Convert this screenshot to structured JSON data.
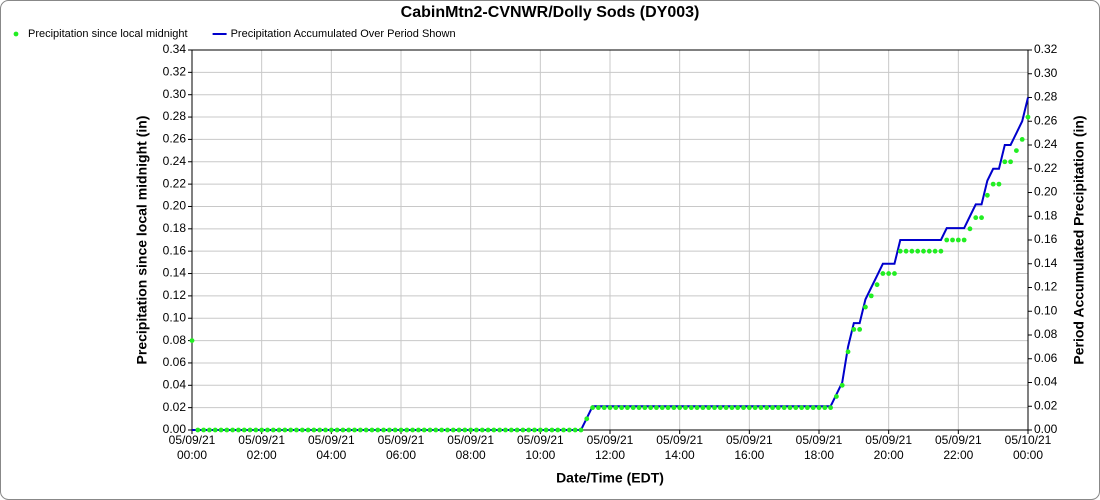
{
  "chart_data": {
    "type": "line",
    "title": "CabinMtn2-CVNWR/Dolly Sods (DY003)",
    "x_label": "Date/Time (EDT)",
    "y_label": "Precipitation since local midnight (in)",
    "y2_label": "Period Accumulated Precipitation (in)",
    "grid": true,
    "legend": "top-left",
    "xlim": [
      0,
      1440
    ],
    "xticks": [
      {
        "value": 0,
        "label": "05/09/21\n00:00"
      },
      {
        "value": 120,
        "label": "05/09/21\n02:00"
      },
      {
        "value": 240,
        "label": "05/09/21\n04:00"
      },
      {
        "value": 360,
        "label": "05/09/21\n06:00"
      },
      {
        "value": 480,
        "label": "05/09/21\n08:00"
      },
      {
        "value": 600,
        "label": "05/09/21\n10:00"
      },
      {
        "value": 720,
        "label": "05/09/21\n12:00"
      },
      {
        "value": 840,
        "label": "05/09/21\n14:00"
      },
      {
        "value": 960,
        "label": "05/09/21\n16:00"
      },
      {
        "value": 1080,
        "label": "05/09/21\n18:00"
      },
      {
        "value": 1200,
        "label": "05/09/21\n20:00"
      },
      {
        "value": 1320,
        "label": "05/09/21\n22:00"
      },
      {
        "value": 1440,
        "label": "05/10/21\n00:00"
      }
    ],
    "ylim": [
      0,
      0.34
    ],
    "yticks": [
      {
        "value": 0,
        "label": "0.00"
      },
      {
        "value": 0.02,
        "label": "0.02"
      },
      {
        "value": 0.04,
        "label": "0.04"
      },
      {
        "value": 0.06,
        "label": "0.06"
      },
      {
        "value": 0.08,
        "label": "0.08"
      },
      {
        "value": 0.1,
        "label": "0.10"
      },
      {
        "value": 0.12,
        "label": "0.12"
      },
      {
        "value": 0.14,
        "label": "0.14"
      },
      {
        "value": 0.16,
        "label": "0.16"
      },
      {
        "value": 0.18,
        "label": "0.18"
      },
      {
        "value": 0.2,
        "label": "0.20"
      },
      {
        "value": 0.22,
        "label": "0.22"
      },
      {
        "value": 0.24,
        "label": "0.24"
      },
      {
        "value": 0.26,
        "label": "0.26"
      },
      {
        "value": 0.28,
        "label": "0.28"
      },
      {
        "value": 0.3,
        "label": "0.30"
      },
      {
        "value": 0.32,
        "label": "0.32"
      },
      {
        "value": 0.34,
        "label": "0.34"
      }
    ],
    "y2lim": [
      0,
      0.32
    ],
    "y2ticks": [
      {
        "value": 0,
        "label": "0.00"
      },
      {
        "value": 0.02,
        "label": "0.02"
      },
      {
        "value": 0.04,
        "label": "0.04"
      },
      {
        "value": 0.06,
        "label": "0.06"
      },
      {
        "value": 0.08,
        "label": "0.08"
      },
      {
        "value": 0.1,
        "label": "0.10"
      },
      {
        "value": 0.12,
        "label": "0.12"
      },
      {
        "value": 0.14,
        "label": "0.14"
      },
      {
        "value": 0.16,
        "label": "0.16"
      },
      {
        "value": 0.18,
        "label": "0.18"
      },
      {
        "value": 0.2,
        "label": "0.20"
      },
      {
        "value": 0.22,
        "label": "0.22"
      },
      {
        "value": 0.24,
        "label": "0.24"
      },
      {
        "value": 0.26,
        "label": "0.26"
      },
      {
        "value": 0.28,
        "label": "0.28"
      },
      {
        "value": 0.3,
        "label": "0.30"
      },
      {
        "value": 0.32,
        "label": "0.32"
      }
    ],
    "x": [
      0,
      10,
      20,
      30,
      40,
      50,
      60,
      70,
      80,
      90,
      100,
      110,
      120,
      130,
      140,
      150,
      160,
      170,
      180,
      190,
      200,
      210,
      220,
      230,
      240,
      250,
      260,
      270,
      280,
      290,
      300,
      310,
      320,
      330,
      340,
      350,
      360,
      370,
      380,
      390,
      400,
      410,
      420,
      430,
      440,
      450,
      460,
      470,
      480,
      490,
      500,
      510,
      520,
      530,
      540,
      550,
      560,
      570,
      580,
      590,
      600,
      610,
      620,
      630,
      640,
      650,
      660,
      670,
      680,
      690,
      700,
      710,
      720,
      730,
      740,
      750,
      760,
      770,
      780,
      790,
      800,
      810,
      820,
      830,
      840,
      850,
      860,
      870,
      880,
      890,
      900,
      910,
      920,
      930,
      940,
      950,
      960,
      970,
      980,
      990,
      1000,
      1010,
      1020,
      1030,
      1040,
      1050,
      1060,
      1070,
      1080,
      1090,
      1100,
      1110,
      1120,
      1130,
      1140,
      1150,
      1160,
      1170,
      1180,
      1190,
      1200,
      1210,
      1220,
      1230,
      1240,
      1250,
      1260,
      1270,
      1280,
      1290,
      1300,
      1310,
      1320,
      1330,
      1340,
      1350,
      1360,
      1370,
      1380,
      1390,
      1400,
      1410,
      1420,
      1430,
      1440
    ],
    "series": [
      {
        "name": "Precipitation since local midnight",
        "style": "dots",
        "color": "#22ee22",
        "values": [
          0.08,
          0,
          0,
          0,
          0,
          0,
          0,
          0,
          0,
          0,
          0,
          0,
          0,
          0,
          0,
          0,
          0,
          0,
          0,
          0,
          0,
          0,
          0,
          0,
          0,
          0,
          0,
          0,
          0,
          0,
          0,
          0,
          0,
          0,
          0,
          0,
          0,
          0,
          0,
          0,
          0,
          0,
          0,
          0,
          0,
          0,
          0,
          0,
          0,
          0,
          0,
          0,
          0,
          0,
          0,
          0,
          0,
          0,
          0,
          0,
          0,
          0,
          0,
          0,
          0,
          0,
          0,
          0,
          0.01,
          0.02,
          0.02,
          0.02,
          0.02,
          0.02,
          0.02,
          0.02,
          0.02,
          0.02,
          0.02,
          0.02,
          0.02,
          0.02,
          0.02,
          0.02,
          0.02,
          0.02,
          0.02,
          0.02,
          0.02,
          0.02,
          0.02,
          0.02,
          0.02,
          0.02,
          0.02,
          0.02,
          0.02,
          0.02,
          0.02,
          0.02,
          0.02,
          0.02,
          0.02,
          0.02,
          0.02,
          0.02,
          0.02,
          0.02,
          0.02,
          0.02,
          0.02,
          0.03,
          0.04,
          0.07,
          0.09,
          0.09,
          0.11,
          0.12,
          0.13,
          0.14,
          0.14,
          0.14,
          0.16,
          0.16,
          0.16,
          0.16,
          0.16,
          0.16,
          0.16,
          0.16,
          0.17,
          0.17,
          0.17,
          0.17,
          0.18,
          0.19,
          0.19,
          0.21,
          0.22,
          0.22,
          0.24,
          0.24,
          0.25,
          0.26,
          0.28
        ]
      },
      {
        "name": "Precipitation Accumulated Over Period Shown",
        "style": "line",
        "axis": "y2",
        "color": "#0000cc",
        "values": [
          0,
          0,
          0,
          0,
          0,
          0,
          0,
          0,
          0,
          0,
          0,
          0,
          0,
          0,
          0,
          0,
          0,
          0,
          0,
          0,
          0,
          0,
          0,
          0,
          0,
          0,
          0,
          0,
          0,
          0,
          0,
          0,
          0,
          0,
          0,
          0,
          0,
          0,
          0,
          0,
          0,
          0,
          0,
          0,
          0,
          0,
          0,
          0,
          0,
          0,
          0,
          0,
          0,
          0,
          0,
          0,
          0,
          0,
          0,
          0,
          0,
          0,
          0,
          0,
          0,
          0,
          0,
          0,
          0.01,
          0.02,
          0.02,
          0.02,
          0.02,
          0.02,
          0.02,
          0.02,
          0.02,
          0.02,
          0.02,
          0.02,
          0.02,
          0.02,
          0.02,
          0.02,
          0.02,
          0.02,
          0.02,
          0.02,
          0.02,
          0.02,
          0.02,
          0.02,
          0.02,
          0.02,
          0.02,
          0.02,
          0.02,
          0.02,
          0.02,
          0.02,
          0.02,
          0.02,
          0.02,
          0.02,
          0.02,
          0.02,
          0.02,
          0.02,
          0.02,
          0.02,
          0.02,
          0.03,
          0.04,
          0.07,
          0.09,
          0.09,
          0.11,
          0.12,
          0.13,
          0.14,
          0.14,
          0.14,
          0.16,
          0.16,
          0.16,
          0.16,
          0.16,
          0.16,
          0.16,
          0.16,
          0.17,
          0.17,
          0.17,
          0.17,
          0.18,
          0.19,
          0.19,
          0.21,
          0.22,
          0.22,
          0.24,
          0.24,
          0.25,
          0.26,
          0.28
        ]
      }
    ]
  }
}
